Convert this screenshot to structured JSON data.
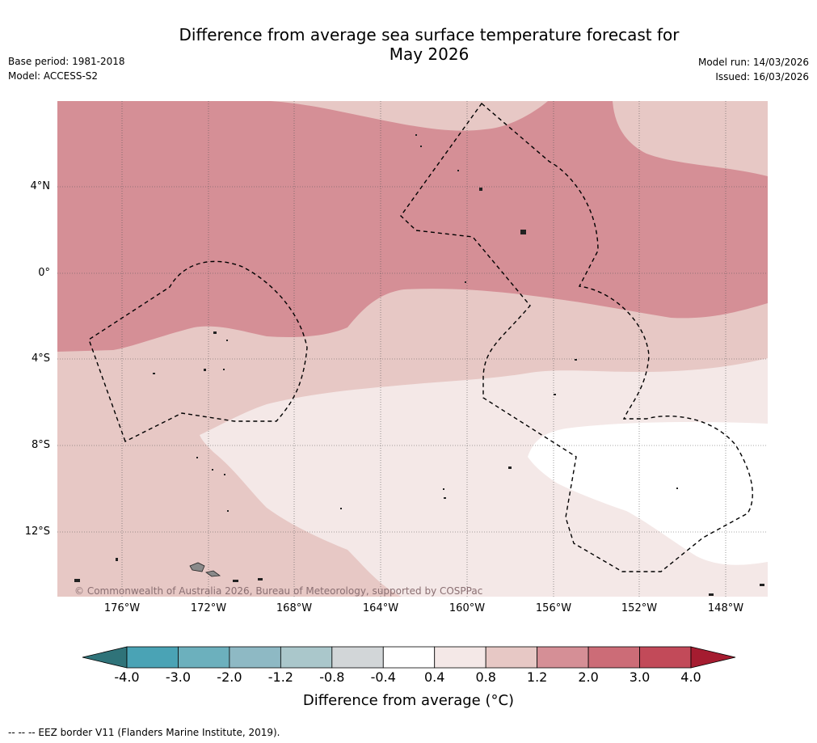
{
  "header": {
    "title_line1": "Difference from average sea surface temperature forecast for",
    "title_line2": "May 2026",
    "base_period": "Base period: 1981-2018",
    "model": "Model: ACCESS-S2",
    "model_run": "Model run: 14/03/2026",
    "issued": "Issued: 16/03/2026"
  },
  "map": {
    "lat_labels": [
      "4°N",
      "0°",
      "4°S",
      "8°S",
      "12°S"
    ],
    "lon_labels": [
      "176°W",
      "172°W",
      "168°W",
      "164°W",
      "160°W",
      "156°W",
      "152°W",
      "148°W"
    ],
    "copyright": "© Commonwealth of Australia 2026, Bureau of Meteorology, supported by COSPPac",
    "ocean_colors": {
      "band_1p2_2p0": "#d58f96",
      "band_0p8_1p2": "#e7c8c5",
      "band_0p4_0p8": "#f4e8e7",
      "band_m0p4_0p4": "#ffffff"
    }
  },
  "colorbar": {
    "label": "Difference from average (°C)",
    "ticks": [
      "-4.0",
      "-3.0",
      "-2.0",
      "-1.2",
      "-0.8",
      "-0.4",
      "0.4",
      "0.8",
      "1.2",
      "2.0",
      "3.0",
      "4.0"
    ],
    "colors": [
      "#2f7379",
      "#4aa3b5",
      "#6cb0bd",
      "#8eb9c4",
      "#aac7cb",
      "#d2d6d8",
      "#ffffff",
      "#f4e8e7",
      "#e7c8c5",
      "#d58f96",
      "#cc6c77",
      "#c24a59",
      "#a51c30"
    ]
  },
  "footnote": "--  --  -- EEZ border V11 (Flanders Marine Institute, 2019)."
}
